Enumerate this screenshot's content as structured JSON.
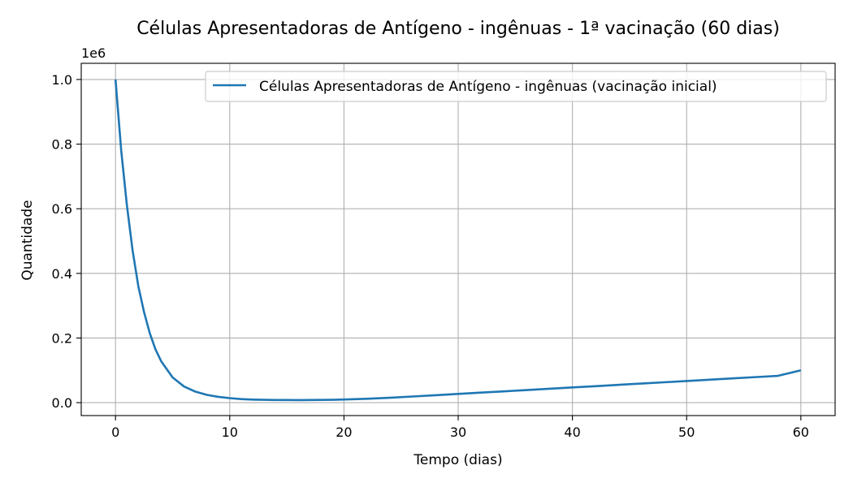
{
  "chart_data": {
    "type": "line",
    "title": "Células Apresentadoras de Antígeno - ingênuas - 1ª vacinação (60 dias)",
    "xlabel": "Tempo (dias)",
    "ylabel": "Quantidade",
    "y_offset_label": "1e6",
    "xlim": [
      -3,
      63
    ],
    "ylim": [
      -0.04,
      1.05
    ],
    "x_ticks": [
      0,
      10,
      20,
      30,
      40,
      50,
      60
    ],
    "y_ticks": [
      0.0,
      0.2,
      0.4,
      0.6,
      0.8,
      1.0
    ],
    "x_tick_labels": [
      "0",
      "10",
      "20",
      "30",
      "40",
      "50",
      "60"
    ],
    "y_tick_labels": [
      "0.0",
      "0.2",
      "0.4",
      "0.6",
      "0.8",
      "1.0"
    ],
    "grid": true,
    "legend_position": "top-right",
    "series": [
      {
        "name": "Células Apresentadoras de Antígeno - ingênuas (vacinação inicial)",
        "color": "#1f77b4",
        "x": [
          0,
          0.5,
          1,
          1.5,
          2,
          2.5,
          3,
          3.5,
          4,
          5,
          6,
          7,
          8,
          9,
          10,
          11,
          12,
          13,
          14,
          15,
          16,
          17,
          18,
          19,
          20,
          22,
          24,
          26,
          28,
          30,
          32,
          34,
          36,
          38,
          40,
          42,
          44,
          46,
          48,
          50,
          52,
          54,
          56,
          58,
          60
        ],
        "y": [
          1.0,
          0.78,
          0.61,
          0.47,
          0.36,
          0.28,
          0.215,
          0.165,
          0.128,
          0.078,
          0.05,
          0.034,
          0.024,
          0.018,
          0.014,
          0.011,
          0.0095,
          0.0087,
          0.0083,
          0.0081,
          0.008,
          0.0081,
          0.0084,
          0.0089,
          0.0097,
          0.012,
          0.015,
          0.019,
          0.023,
          0.027,
          0.031,
          0.035,
          0.039,
          0.043,
          0.047,
          0.051,
          0.055,
          0.059,
          0.063,
          0.067,
          0.071,
          0.075,
          0.079,
          0.083,
          0.1
        ]
      }
    ]
  }
}
